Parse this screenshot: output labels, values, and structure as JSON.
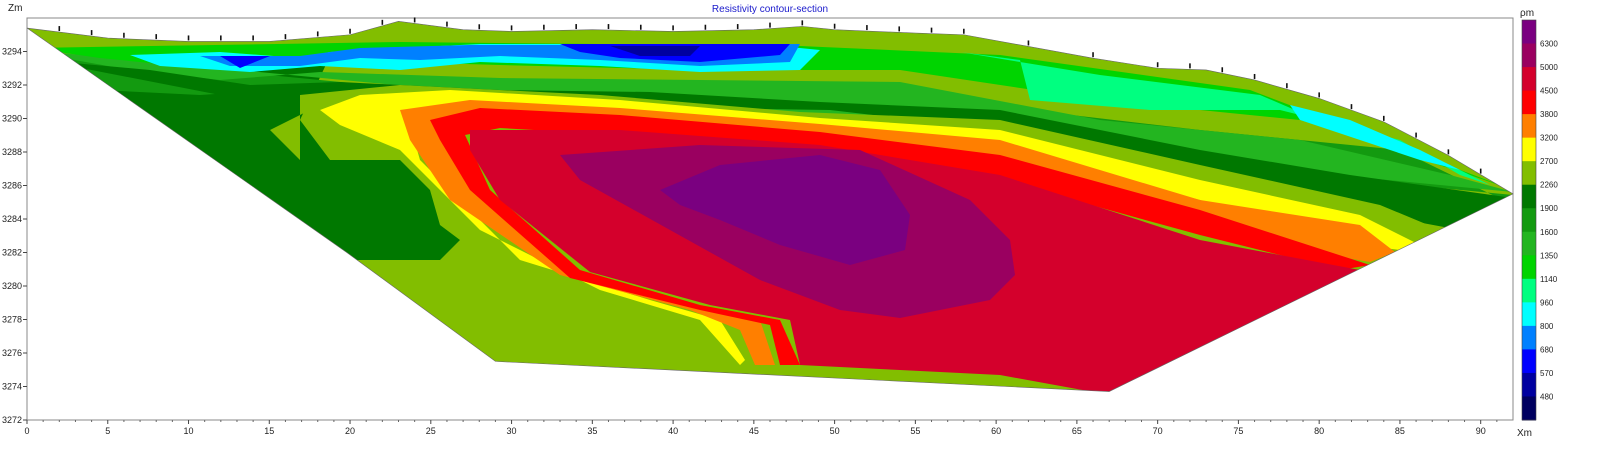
{
  "chart_data": {
    "type": "heatmap",
    "title": "Resistivity contour-section",
    "xlabel": "Xm",
    "ylabel": "Zm",
    "colorbar_label": "ρm",
    "xlim": [
      0,
      92
    ],
    "ylim": [
      3272,
      3296
    ],
    "x_ticks": [
      0,
      5,
      10,
      15,
      20,
      25,
      30,
      35,
      40,
      45,
      50,
      55,
      60,
      65,
      70,
      75,
      80,
      85,
      90
    ],
    "y_ticks": [
      3272,
      3274,
      3276,
      3278,
      3280,
      3282,
      3284,
      3286,
      3288,
      3290,
      3292,
      3294
    ],
    "colorbar": {
      "levels": [
        "6300",
        "5000",
        "4500",
        "3800",
        "3200",
        "2700",
        "2260",
        "1900",
        "1600",
        "1350",
        "1140",
        "960",
        "800",
        "680",
        "570",
        "480"
      ],
      "colors": [
        "#7a0080",
        "#9a0060",
        "#d4002c",
        "#ff0000",
        "#ff7f00",
        "#ffff00",
        "#82be00",
        "#007800",
        "#139a10",
        "#23b520",
        "#00d400",
        "#00ff80",
        "#00ffff",
        "#0080ff",
        "#0000ff",
        "#0000a0",
        "#000060"
      ]
    },
    "surface_profile": [
      [
        0,
        3295.4
      ],
      [
        5,
        3294.8
      ],
      [
        10,
        3294.6
      ],
      [
        15,
        3294.6
      ],
      [
        20,
        3295.0
      ],
      [
        23,
        3295.8
      ],
      [
        27,
        3295.3
      ],
      [
        30,
        3295.2
      ],
      [
        35,
        3295.3
      ],
      [
        40,
        3295.2
      ],
      [
        45,
        3295.3
      ],
      [
        48,
        3295.5
      ],
      [
        50,
        3295.3
      ],
      [
        55,
        3295.1
      ],
      [
        58,
        3295.0
      ],
      [
        62,
        3294.3
      ],
      [
        66,
        3293.6
      ],
      [
        70,
        3293.0
      ],
      [
        73,
        3292.9
      ],
      [
        76,
        3292.3
      ],
      [
        80,
        3291.2
      ],
      [
        84,
        3289.8
      ],
      [
        88,
        3287.8
      ],
      [
        92,
        3285.5
      ]
    ],
    "electrodes_x": [
      2,
      4,
      6,
      8,
      10,
      12,
      14,
      16,
      18,
      20,
      22,
      24,
      26,
      28,
      30,
      32,
      34,
      36,
      38,
      40,
      42,
      44,
      46,
      48,
      50,
      52,
      54,
      56,
      58,
      62,
      66,
      70,
      72,
      74,
      76,
      78,
      80,
      82,
      84,
      86,
      88,
      90
    ],
    "section_outline": [
      [
        0,
        3295.4
      ],
      [
        19.8,
        3282.0
      ],
      [
        29,
        3275.5
      ],
      [
        67,
        3273.7
      ],
      [
        92,
        3285.5
      ]
    ]
  }
}
